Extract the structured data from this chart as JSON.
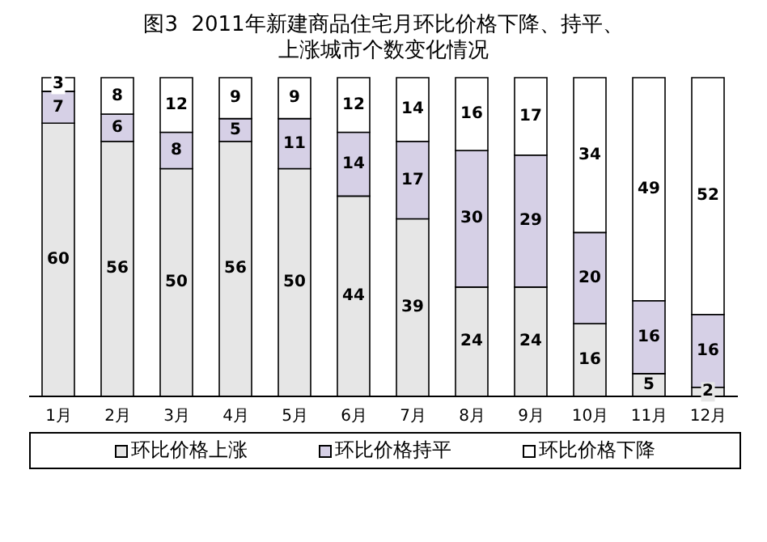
{
  "chart_data": {
    "type": "bar",
    "title": "图3  2011年新建商品住宅月环比价格下降、持平、上涨城市个数变化情况",
    "categories": [
      "1月",
      "2月",
      "3月",
      "4月",
      "5月",
      "6月",
      "7月",
      "8月",
      "9月",
      "10月",
      "11月",
      "12月"
    ],
    "stacked": true,
    "data_labels": true,
    "tick_labels": "x",
    "legend": "bottom",
    "grid": false,
    "series": [
      {
        "name": "环比价格上涨",
        "color": "#e6e6e6",
        "values": [
          60,
          56,
          50,
          56,
          50,
          44,
          39,
          24,
          24,
          16,
          5,
          2
        ]
      },
      {
        "name": "环比价格持平",
        "color": "#d6d0e6",
        "values": [
          7,
          6,
          8,
          5,
          11,
          14,
          17,
          30,
          29,
          20,
          16,
          16
        ]
      },
      {
        "name": "环比价格下降",
        "color": "#ffffff",
        "values": [
          3,
          8,
          12,
          9,
          9,
          12,
          14,
          16,
          17,
          34,
          49,
          52
        ]
      }
    ]
  }
}
